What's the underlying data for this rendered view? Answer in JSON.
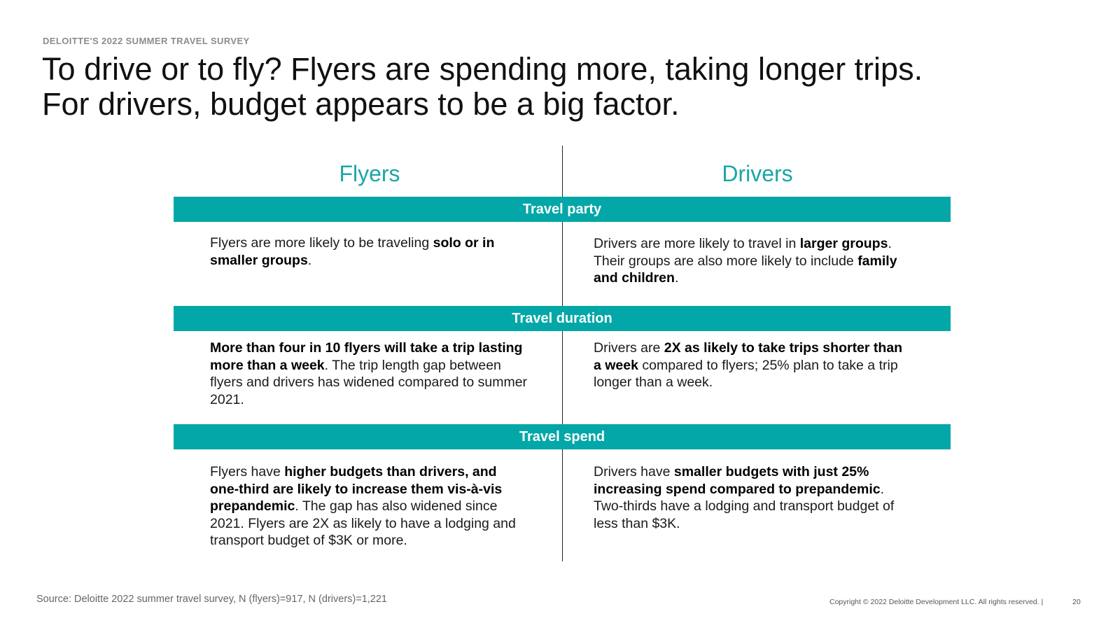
{
  "header": {
    "kicker": "DELOITTE'S 2022 SUMMER TRAVEL SURVEY",
    "title_line1": "To drive or to fly? Flyers are spending more, taking longer trips.",
    "title_line2": "For drivers, budget appears to be a big factor."
  },
  "columns": {
    "left": "Flyers",
    "right": "Drivers"
  },
  "sections": [
    {
      "band": "Travel party",
      "left": [
        {
          "t": "Flyers are more likely to be traveling ",
          "b": false
        },
        {
          "t": "solo or in smaller groups",
          "b": true
        },
        {
          "t": ".",
          "b": false
        }
      ],
      "right": [
        {
          "t": "Drivers are more likely to travel in ",
          "b": false
        },
        {
          "t": "larger groups",
          "b": true
        },
        {
          "t": ". Their groups are also more likely to include ",
          "b": false
        },
        {
          "t": "family and children",
          "b": true
        },
        {
          "t": ".",
          "b": false
        }
      ]
    },
    {
      "band": "Travel duration",
      "left": [
        {
          "t": "More than four in 10 flyers will take a trip lasting more than a week",
          "b": true
        },
        {
          "t": ". The trip length gap between flyers and drivers has widened compared to summer 2021.",
          "b": false
        }
      ],
      "right": [
        {
          "t": "Drivers are ",
          "b": false
        },
        {
          "t": "2X as likely to take trips shorter than a week",
          "b": true
        },
        {
          "t": " compared to flyers; 25% plan to take a trip longer than a week.",
          "b": false
        }
      ]
    },
    {
      "band": "Travel spend",
      "left": [
        {
          "t": "Flyers have ",
          "b": false
        },
        {
          "t": "higher budgets than drivers, and one-third are likely to increase them vis-à-vis prepandemic",
          "b": true
        },
        {
          "t": ". The gap has also widened since 2021. Flyers are 2X as likely to have a lodging and transport budget of $3K or more.",
          "b": false
        }
      ],
      "right": [
        {
          "t": "Drivers have ",
          "b": false
        },
        {
          "t": "smaller budgets with just 25% increasing spend compared to prepandemic",
          "b": true
        },
        {
          "t": ". Two-thirds have a lodging and transport budget of less than $3K.",
          "b": false
        }
      ]
    }
  ],
  "footer": {
    "source": "Source: Deloitte 2022 summer travel survey, N (flyers)=917, N (drivers)=1,221",
    "copyright": "Copyright © 2022 Deloitte Development LLC. All rights reserved. |",
    "page_number": "20"
  },
  "colors": {
    "accent": "#04a7a7",
    "column_heading": "#1aa6a6"
  }
}
